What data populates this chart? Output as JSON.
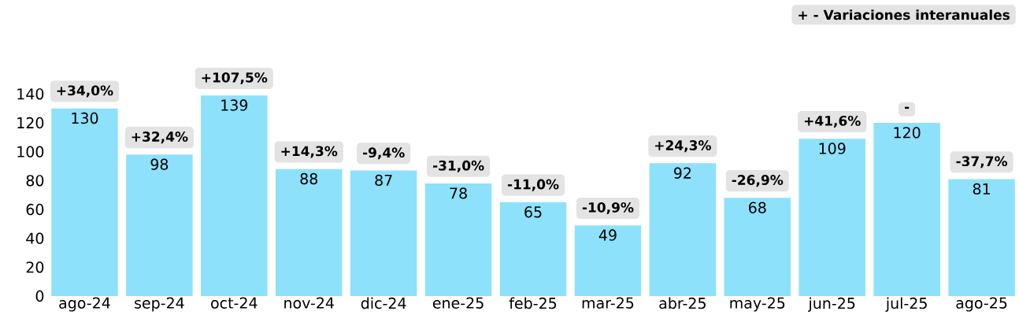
{
  "chart_data": {
    "type": "bar",
    "categories": [
      "ago-24",
      "sep-24",
      "oct-24",
      "nov-24",
      "dic-24",
      "ene-25",
      "feb-25",
      "mar-25",
      "abr-25",
      "may-25",
      "jun-25",
      "jul-25",
      "ago-25"
    ],
    "values": [
      130,
      98,
      139,
      88,
      87,
      78,
      65,
      49,
      92,
      68,
      109,
      120,
      81
    ],
    "color": "#8ee1fb",
    "data_labels": true,
    "ylim": [
      0,
      150
    ],
    "yticks": [
      0,
      20,
      40,
      60,
      80,
      100,
      120,
      140
    ],
    "annotations": [
      {
        "text": "+34,0%",
        "x": "ago-24",
        "y": 130
      },
      {
        "text": "+32,4%",
        "x": "sep-24",
        "y": 98
      },
      {
        "text": "+107,5%",
        "x": "oct-24",
        "y": 139
      },
      {
        "text": "+14,3%",
        "x": "nov-24",
        "y": 88
      },
      {
        "text": "-9,4%",
        "x": "dic-24",
        "y": 87
      },
      {
        "text": "-31,0%",
        "x": "ene-25",
        "y": 78
      },
      {
        "text": "-11,0%",
        "x": "feb-25",
        "y": 65
      },
      {
        "text": "-10,9%",
        "x": "mar-25",
        "y": 49
      },
      {
        "text": "+24,3%",
        "x": "abr-25",
        "y": 92
      },
      {
        "text": "-26,9%",
        "x": "may-25",
        "y": 68
      },
      {
        "text": "+41,6%",
        "x": "jun-25",
        "y": 109
      },
      {
        "text": "-",
        "x": "jul-25",
        "y": 120
      },
      {
        "text": "-37,7%",
        "x": "ago-25",
        "y": 81
      },
      "+ - Variaciones interanuales"
    ]
  }
}
